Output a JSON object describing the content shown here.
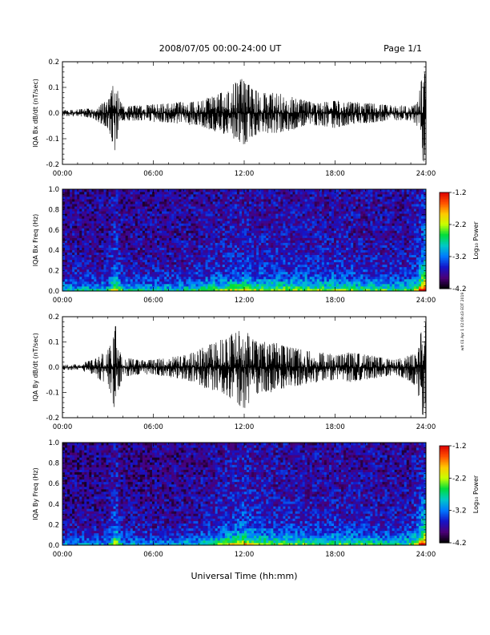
{
  "header": {
    "title": "2008/07/05  00:00-24:00 UT",
    "page": "Page 1/1"
  },
  "side_note": "wlt 01 Apr 1 02:09:43 EDT 2019",
  "xlabel": "Universal Time (hh:mm)",
  "x_ticks": [
    "00:00",
    "06:00",
    "12:00",
    "18:00",
    "24:00"
  ],
  "colors": {
    "trace": "#000000",
    "frame": "#000000",
    "background": "#ffffff"
  },
  "chart_data": [
    {
      "type": "line",
      "id": "bx-dbdt",
      "ylabel": "IQA Bx dB/dt (nT/sec)",
      "x_unit": "hours UT",
      "xlim": [
        0,
        24
      ],
      "ylim": [
        -0.2,
        0.2
      ],
      "y_ticks": [
        "0.2",
        "0.1",
        "0.0",
        "-0.1",
        "-0.2"
      ],
      "y_tick_values": [
        0.2,
        0.1,
        0.0,
        -0.1,
        -0.2
      ],
      "envelope": {
        "x": [
          0,
          1,
          2,
          3,
          3.3,
          3.5,
          3.7,
          4,
          5,
          6,
          7,
          8,
          9,
          10,
          11,
          11.5,
          12,
          12.5,
          13,
          14,
          15,
          16,
          17,
          18,
          19,
          20,
          21,
          22,
          23,
          23.4,
          23.6,
          23.8,
          24
        ],
        "upper": [
          0.012,
          0.015,
          0.02,
          0.05,
          0.1,
          0.16,
          0.07,
          0.03,
          0.03,
          0.035,
          0.04,
          0.045,
          0.05,
          0.07,
          0.09,
          0.13,
          0.135,
          0.1,
          0.08,
          0.08,
          0.07,
          0.05,
          0.04,
          0.05,
          0.045,
          0.04,
          0.035,
          0.03,
          0.03,
          0.04,
          0.1,
          0.2,
          0.2
        ],
        "lower": [
          -0.012,
          -0.014,
          -0.02,
          -0.06,
          -0.12,
          -0.17,
          -0.08,
          -0.03,
          -0.03,
          -0.035,
          -0.04,
          -0.045,
          -0.05,
          -0.07,
          -0.09,
          -0.11,
          -0.13,
          -0.1,
          -0.08,
          -0.08,
          -0.07,
          -0.05,
          -0.05,
          -0.06,
          -0.045,
          -0.04,
          -0.035,
          -0.03,
          -0.03,
          -0.05,
          -0.12,
          -0.2,
          -0.2
        ]
      }
    },
    {
      "type": "heatmap",
      "id": "bx-spectrogram",
      "ylabel": "IQA Bx Freq (Hz)",
      "x_unit": "hours UT",
      "xlim": [
        0,
        24
      ],
      "ylim": [
        0.0,
        1.0
      ],
      "y_ticks": [
        "1.0",
        "0.8",
        "0.6",
        "0.4",
        "0.2",
        "0.0"
      ],
      "y_tick_values": [
        1.0,
        0.8,
        0.6,
        0.4,
        0.2,
        0.0
      ],
      "colorbar": {
        "label": "Log₁₀ Power",
        "range": [
          -4.2,
          -1.2
        ],
        "ticks": [
          "-1.2",
          "-2.2",
          "-3.2",
          "-4.2"
        ],
        "tick_values": [
          -1.2,
          -2.2,
          -3.2,
          -4.2
        ],
        "colormap": [
          "#000000",
          "#4b0078",
          "#1414c8",
          "#0078ff",
          "#00c8c8",
          "#00dc3c",
          "#c8ff00",
          "#ffc800",
          "#ff5000",
          "#dc0000"
        ]
      },
      "activity": {
        "x": [
          0,
          3,
          3.5,
          4,
          6,
          8,
          10,
          11,
          12,
          13,
          14,
          16,
          18,
          20,
          22,
          23,
          23.5,
          23.8,
          24
        ],
        "level": [
          0.25,
          0.3,
          0.75,
          0.3,
          0.3,
          0.32,
          0.45,
          0.55,
          0.6,
          0.55,
          0.55,
          0.5,
          0.5,
          0.45,
          0.4,
          0.45,
          0.7,
          0.95,
          0.95
        ]
      }
    },
    {
      "type": "line",
      "id": "by-dbdt",
      "ylabel": "IQA By dB/dt (nT/sec)",
      "x_unit": "hours UT",
      "xlim": [
        0,
        24
      ],
      "ylim": [
        -0.2,
        0.2
      ],
      "y_ticks": [
        "0.2",
        "0.1",
        "0.0",
        "-0.1",
        "-0.2"
      ],
      "y_tick_values": [
        0.2,
        0.1,
        0.0,
        -0.1,
        -0.2
      ],
      "envelope": {
        "x": [
          0,
          1,
          2,
          3,
          3.3,
          3.5,
          3.7,
          4,
          5,
          6,
          7,
          8,
          9,
          10,
          11,
          11.5,
          12,
          12.5,
          13,
          14,
          15,
          16,
          17,
          18,
          19,
          20,
          21,
          22,
          23,
          23.4,
          23.6,
          23.8,
          24
        ],
        "upper": [
          0.01,
          0.012,
          0.03,
          0.07,
          0.12,
          0.19,
          0.09,
          0.04,
          0.03,
          0.03,
          0.04,
          0.05,
          0.07,
          0.1,
          0.12,
          0.155,
          0.15,
          0.12,
          0.1,
          0.1,
          0.08,
          0.07,
          0.06,
          0.05,
          0.06,
          0.05,
          0.04,
          0.03,
          0.05,
          0.06,
          0.12,
          0.19,
          0.2
        ],
        "lower": [
          -0.01,
          -0.012,
          -0.03,
          -0.08,
          -0.14,
          -0.18,
          -0.1,
          -0.04,
          -0.03,
          -0.03,
          -0.04,
          -0.05,
          -0.07,
          -0.1,
          -0.12,
          -0.15,
          -0.18,
          -0.13,
          -0.1,
          -0.1,
          -0.08,
          -0.07,
          -0.06,
          -0.05,
          -0.06,
          -0.05,
          -0.04,
          -0.03,
          -0.06,
          -0.08,
          -0.15,
          -0.2,
          -0.2
        ]
      }
    },
    {
      "type": "heatmap",
      "id": "by-spectrogram",
      "ylabel": "IQA By Freq (Hz)",
      "x_unit": "hours UT",
      "xlim": [
        0,
        24
      ],
      "ylim": [
        0.0,
        1.0
      ],
      "y_ticks": [
        "1.0",
        "0.8",
        "0.6",
        "0.4",
        "0.2",
        "0.0"
      ],
      "y_tick_values": [
        1.0,
        0.8,
        0.6,
        0.4,
        0.2,
        0.0
      ],
      "colorbar": {
        "label": "Log₁₀ Power",
        "range": [
          -4.2,
          -1.2
        ],
        "ticks": [
          "-1.2",
          "-2.2",
          "-3.2",
          "-4.2"
        ],
        "tick_values": [
          -1.2,
          -2.2,
          -3.2,
          -4.2
        ],
        "colormap": [
          "#000000",
          "#4b0078",
          "#1414c8",
          "#0078ff",
          "#00c8c8",
          "#00dc3c",
          "#c8ff00",
          "#ffc800",
          "#ff5000",
          "#dc0000"
        ]
      },
      "activity": {
        "x": [
          0,
          3,
          3.5,
          4,
          6,
          8,
          10,
          11,
          12,
          13,
          14,
          16,
          18,
          20,
          22,
          23,
          23.5,
          23.8,
          24
        ],
        "level": [
          0.15,
          0.2,
          0.75,
          0.2,
          0.2,
          0.22,
          0.4,
          0.6,
          0.7,
          0.55,
          0.5,
          0.45,
          0.45,
          0.4,
          0.35,
          0.4,
          0.7,
          0.9,
          0.9
        ]
      }
    }
  ]
}
